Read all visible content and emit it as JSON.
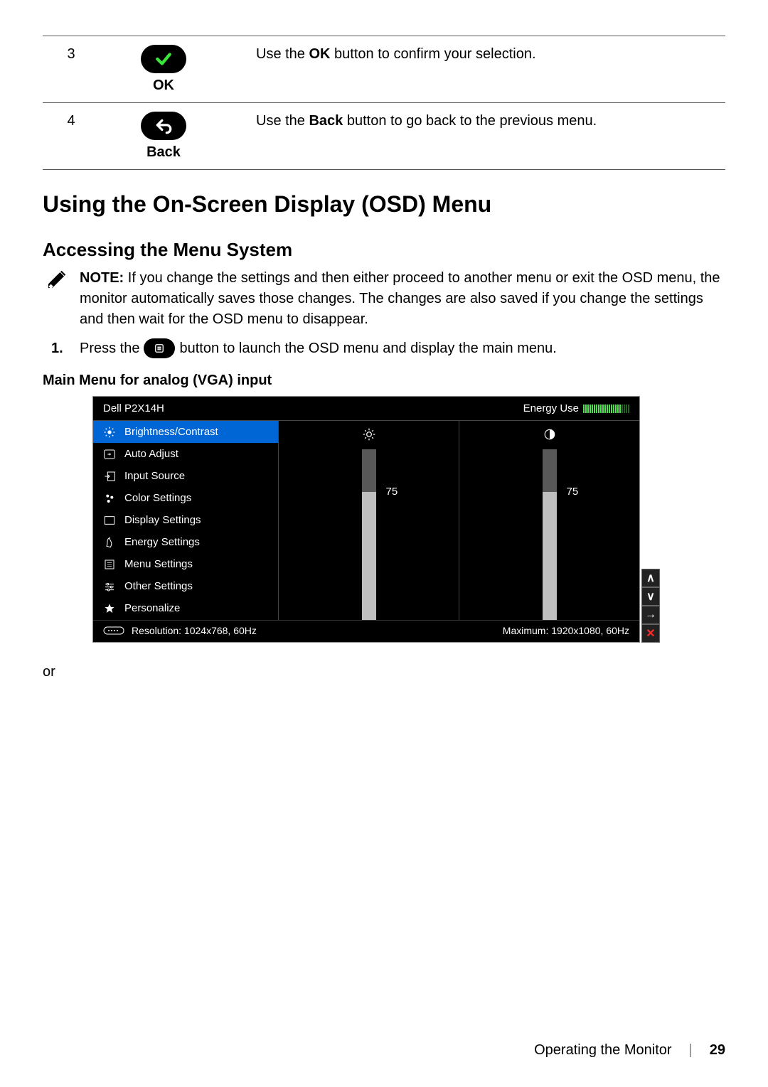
{
  "top_rows": [
    {
      "num": "3",
      "label": "OK",
      "desc_pre": "Use the ",
      "desc_bold": "OK",
      "desc_post": " button to confirm your selection.",
      "icon_bg": "#000000",
      "icon_stroke": "#4fe24f"
    },
    {
      "num": "4",
      "label": "Back",
      "desc_pre": "Use the ",
      "desc_bold": "Back",
      "desc_post": " button to go back to the previous menu.",
      "icon_bg": "#000000",
      "icon_stroke": "#ffffff"
    }
  ],
  "h1": "Using the On-Screen Display (OSD) Menu",
  "h2": "Accessing the Menu System",
  "note": {
    "label": "NOTE:",
    "text": " If you change the settings and then either proceed to another menu or exit the OSD menu, the monitor automatically saves those changes. The changes are also saved if you change the settings and then wait for the OSD menu to disappear."
  },
  "step1": {
    "num": "1.",
    "pre": "Press the",
    "post": "button to launch the OSD menu and display the main menu."
  },
  "subheading": "Main Menu for analog (VGA) input",
  "osd": {
    "model": "Dell P2X14H",
    "energy_label": "Energy Use",
    "energy_total_bars": 22,
    "energy_filled_bars": 18,
    "energy_on_color": "#4fe24f",
    "energy_off_color": "#206020",
    "selected_bg": "#0066d6",
    "menu": [
      {
        "label": "Brightness/Contrast",
        "selected": true
      },
      {
        "label": "Auto Adjust",
        "selected": false
      },
      {
        "label": "Input Source",
        "selected": false
      },
      {
        "label": "Color Settings",
        "selected": false
      },
      {
        "label": "Display Settings",
        "selected": false
      },
      {
        "label": "Energy Settings",
        "selected": false
      },
      {
        "label": "Menu Settings",
        "selected": false
      },
      {
        "label": "Other Settings",
        "selected": false
      },
      {
        "label": "Personalize",
        "selected": false
      }
    ],
    "brightness": {
      "value": 75,
      "max": 100
    },
    "contrast": {
      "value": 75,
      "max": 100
    },
    "bar_track_color": "#585858",
    "bar_fill_color": "#bfbfbf",
    "footer_resolution": "Resolution: 1024x768, 60Hz",
    "footer_maximum": "Maximum: 1920x1080, 60Hz",
    "side_buttons": [
      "∧",
      "∨",
      "→",
      "✕"
    ]
  },
  "or": "or",
  "footer": {
    "section": "Operating the Monitor",
    "page": "29"
  }
}
